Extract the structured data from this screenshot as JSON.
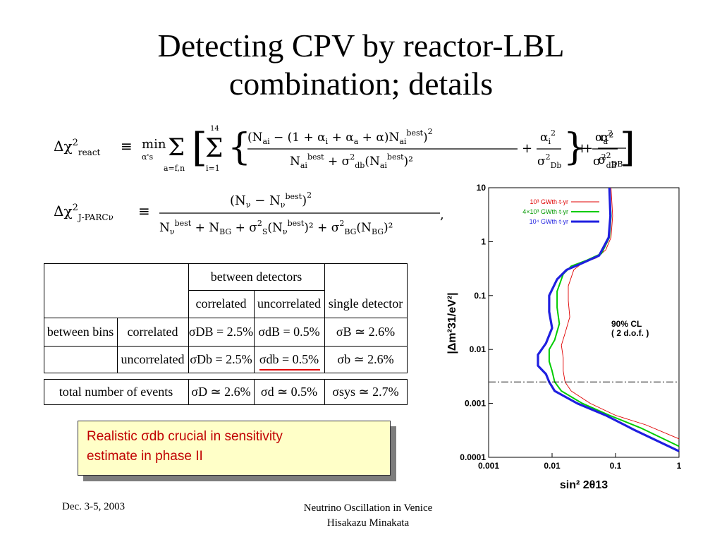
{
  "slide": {
    "title_line1": "Detecting CPV by reactor-LBL",
    "title_line2": "combination; details"
  },
  "equations": {
    "react_lhs": "Δχ²react",
    "react_rhs": "≡ min Σ [ Σ { (N_ai − (1 + α_i + α_a + α) N_ai^best)² / (N_ai^best + σ²db (N_ai^best)²) + α_i²/σ²Db } + α_a²/σ²dB ] + α²/σ²DB",
    "jparc_lhs": "Δχ²J-PARCν",
    "jparc_rhs": "≡ (N_ν − N_ν^best)² / (N_ν^best + N_BG + σ²S (N_ν^best)² + σ²BG (N_BG)²)"
  },
  "table": {
    "group_header": "between detectors",
    "col_correlated": "correlated",
    "col_uncorrelated": "uncorrelated",
    "col_single": "single detector",
    "row_group": "between bins",
    "row_correlated": "correlated",
    "row_uncorrelated": "uncorrelated",
    "row_total": "total number of events",
    "r1c1": "σDB = 2.5%",
    "r1c2": "σdB = 0.5%",
    "r1c3": "σB ≃ 2.6%",
    "r2c1": "σDb = 2.5%",
    "r2c2": "σdb = 0.5%",
    "r2c3": "σb ≃ 2.6%",
    "r3c1": "σD ≃ 2.6%",
    "r3c2": "σd ≃ 0.5%",
    "r3c3": "σsys ≃ 2.7%"
  },
  "callout": {
    "line1": "Realistic σdb crucial in sensitivity",
    "line2": "estimate in phase II"
  },
  "chart_data": {
    "type": "line",
    "xlabel": "sin² 2θ13",
    "ylabel": "|Δm²31/eV²|",
    "xscale": "log",
    "yscale": "log",
    "xlim": [
      0.001,
      1
    ],
    "ylim": [
      0.0001,
      10
    ],
    "xticks": [
      "0.001",
      "0.01",
      "0.1",
      "1"
    ],
    "yticks": [
      "10",
      "1",
      "0.1",
      "0.01",
      "0.001",
      "0.0001"
    ],
    "annotation_line1": "90% CL",
    "annotation_line2": "( 2 d.o.f. )",
    "reference_line_y": 0.0025,
    "legend_placement": "top-left",
    "series": [
      {
        "name": "10³ GWth·t·yr",
        "color": "#e00000",
        "points": [
          [
            0.085,
            10
          ],
          [
            0.09,
            3
          ],
          [
            0.085,
            1.2
          ],
          [
            0.07,
            0.7
          ],
          [
            0.05,
            0.5
          ],
          [
            0.03,
            0.4
          ],
          [
            0.022,
            0.3
          ],
          [
            0.018,
            0.15
          ],
          [
            0.018,
            0.08
          ],
          [
            0.019,
            0.04
          ],
          [
            0.016,
            0.02
          ],
          [
            0.014,
            0.012
          ],
          [
            0.015,
            0.007
          ],
          [
            0.015,
            0.004
          ],
          [
            0.016,
            0.0025
          ],
          [
            0.02,
            0.0017
          ],
          [
            0.04,
            0.001
          ],
          [
            0.1,
            0.0006
          ],
          [
            0.3,
            0.0004
          ],
          [
            1,
            0.00022
          ]
        ]
      },
      {
        "name": "4×10³ GWth·t·yr",
        "color": "#00cc00",
        "points": [
          [
            0.08,
            10
          ],
          [
            0.085,
            3
          ],
          [
            0.08,
            1.2
          ],
          [
            0.06,
            0.6
          ],
          [
            0.035,
            0.45
          ],
          [
            0.02,
            0.35
          ],
          [
            0.015,
            0.25
          ],
          [
            0.012,
            0.12
          ],
          [
            0.012,
            0.06
          ],
          [
            0.013,
            0.03
          ],
          [
            0.011,
            0.015
          ],
          [
            0.009,
            0.01
          ],
          [
            0.009,
            0.006
          ],
          [
            0.01,
            0.004
          ],
          [
            0.011,
            0.0025
          ],
          [
            0.014,
            0.0017
          ],
          [
            0.03,
            0.001
          ],
          [
            0.08,
            0.0006
          ],
          [
            0.25,
            0.00035
          ],
          [
            1,
            0.00016
          ]
        ]
      },
      {
        "name": "10⁴ GWth·t·yr",
        "color": "#1f1fe0",
        "points": [
          [
            0.08,
            10
          ],
          [
            0.083,
            3
          ],
          [
            0.078,
            1.2
          ],
          [
            0.055,
            0.55
          ],
          [
            0.03,
            0.4
          ],
          [
            0.017,
            0.3
          ],
          [
            0.012,
            0.2
          ],
          [
            0.009,
            0.1
          ],
          [
            0.009,
            0.05
          ],
          [
            0.01,
            0.025
          ],
          [
            0.008,
            0.013
          ],
          [
            0.006,
            0.008
          ],
          [
            0.006,
            0.005
          ],
          [
            0.008,
            0.0035
          ],
          [
            0.009,
            0.0025
          ],
          [
            0.011,
            0.0017
          ],
          [
            0.025,
            0.001
          ],
          [
            0.07,
            0.0006
          ],
          [
            0.2,
            0.00032
          ],
          [
            1,
            0.00013
          ]
        ]
      }
    ]
  },
  "footer": {
    "date": "Dec. 3-5, 2003",
    "line1": "Neutrino Oscillation in Venice",
    "line2": "Hisakazu Minakata"
  }
}
